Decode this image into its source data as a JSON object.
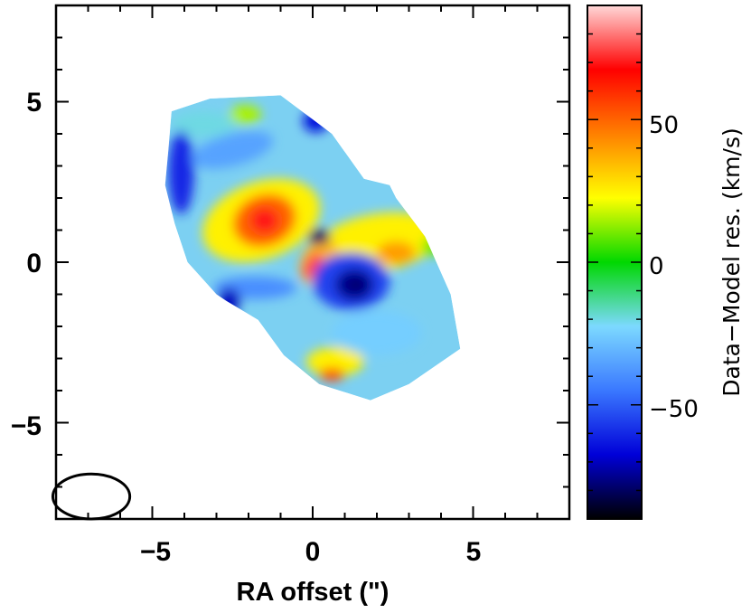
{
  "chart_data": {
    "type": "heatmap",
    "xlabel": "RA offset (\")",
    "ylabel": "",
    "xlim": [
      -8,
      8
    ],
    "ylim": [
      -8,
      8
    ],
    "x_ticks": [
      -5,
      0,
      5
    ],
    "y_ticks": [
      5,
      0,
      -5
    ],
    "x_tick_labels": [
      "−5",
      "0",
      "5"
    ],
    "y_tick_labels": [
      "5",
      "0",
      "−5"
    ],
    "colorbar": {
      "label": "Data−Model res. (km/s)",
      "range": [
        -90,
        90
      ],
      "ticks": [
        50,
        0,
        -50
      ],
      "tick_labels": [
        "50",
        "0",
        "−50"
      ],
      "colormap": [
        "#000000",
        "#0000d8",
        "#3a78ff",
        "#7cd9ff",
        "#00d800",
        "#ffff00",
        "#ff8000",
        "#ff0000",
        "#ffd8d8"
      ]
    },
    "beam": {
      "center": [
        -6.9,
        -7.3
      ],
      "major": 1.2,
      "minor": 0.7
    },
    "map_background": "#7cd0f2",
    "outline": [
      [
        -4.4,
        4.7
      ],
      [
        -3.2,
        5.1
      ],
      [
        -1.0,
        5.2
      ],
      [
        0.6,
        4.0
      ],
      [
        1.6,
        2.6
      ],
      [
        2.4,
        2.4
      ],
      [
        2.6,
        2.0
      ],
      [
        3.5,
        0.8
      ],
      [
        4.3,
        -1.0
      ],
      [
        4.6,
        -2.7
      ],
      [
        3.0,
        -3.8
      ],
      [
        1.8,
        -4.3
      ],
      [
        0.2,
        -3.8
      ],
      [
        -0.9,
        -2.9
      ],
      [
        -1.7,
        -1.8
      ],
      [
        -2.7,
        -1.2
      ],
      [
        -3.0,
        -1.0
      ],
      [
        -3.9,
        0.0
      ],
      [
        -4.3,
        1.2
      ],
      [
        -4.6,
        2.4
      ],
      [
        -4.5,
        3.5
      ]
    ],
    "features": [
      {
        "x": -1.6,
        "y": 1.3,
        "rx": 1.9,
        "ry": 1.2,
        "rot": -20,
        "value": 25
      },
      {
        "x": -1.5,
        "y": 1.3,
        "rx": 1.0,
        "ry": 0.8,
        "rot": -20,
        "value": 50
      },
      {
        "x": -1.5,
        "y": 1.3,
        "rx": 0.45,
        "ry": 0.4,
        "rot": 0,
        "value": 70
      },
      {
        "x": 2.0,
        "y": 0.6,
        "rx": 2.0,
        "ry": 0.9,
        "rot": -10,
        "value": 25
      },
      {
        "x": 2.6,
        "y": 0.3,
        "rx": 0.6,
        "ry": 0.35,
        "rot": 0,
        "value": 40
      },
      {
        "x": 0.2,
        "y": 0.0,
        "rx": 0.55,
        "ry": 0.75,
        "rot": 30,
        "value": 35
      },
      {
        "x": 0.0,
        "y": -0.1,
        "rx": 0.25,
        "ry": 0.45,
        "rot": 30,
        "value": 75
      },
      {
        "x": 1.2,
        "y": -0.6,
        "rx": 1.2,
        "ry": 0.9,
        "rot": 0,
        "value": -55
      },
      {
        "x": 1.3,
        "y": -0.7,
        "rx": 0.6,
        "ry": 0.5,
        "rot": 0,
        "value": -75
      },
      {
        "x": 1.35,
        "y": -0.7,
        "rx": 0.2,
        "ry": 0.12,
        "rot": 0,
        "value": -85
      },
      {
        "x": 0.2,
        "y": 0.8,
        "rx": 0.35,
        "ry": 0.25,
        "rot": 0,
        "value": -80
      },
      {
        "x": -1.8,
        "y": -0.8,
        "rx": 1.3,
        "ry": 0.35,
        "rot": 0,
        "value": -40
      },
      {
        "x": 0.7,
        "y": -3.1,
        "rx": 0.9,
        "ry": 0.45,
        "rot": 0,
        "value": 25
      },
      {
        "x": 0.6,
        "y": -3.5,
        "rx": 0.4,
        "ry": 0.2,
        "rot": 0,
        "value": 55
      },
      {
        "x": -3.4,
        "y": 4.3,
        "rx": 1.0,
        "ry": 0.4,
        "rot": 0,
        "value": -20
      },
      {
        "x": -2.1,
        "y": 4.6,
        "rx": 0.5,
        "ry": 0.3,
        "rot": 0,
        "value": 15
      },
      {
        "x": 0.1,
        "y": 4.4,
        "rx": 0.4,
        "ry": 0.35,
        "rot": 0,
        "value": -65
      },
      {
        "x": -4.1,
        "y": 2.8,
        "rx": 0.4,
        "ry": 1.3,
        "rot": 0,
        "value": -60
      },
      {
        "x": -2.6,
        "y": -1.2,
        "rx": 0.35,
        "ry": 0.4,
        "rot": 0,
        "value": -70
      },
      {
        "x": 3.8,
        "y": 0.5,
        "rx": 0.4,
        "ry": 0.3,
        "rot": 0,
        "value": 10
      },
      {
        "x": 2.0,
        "y": -2.2,
        "rx": 1.4,
        "ry": 0.7,
        "rot": 0,
        "value": -25
      },
      {
        "x": -2.5,
        "y": 3.5,
        "rx": 1.3,
        "ry": 0.5,
        "rot": -15,
        "value": -35
      }
    ]
  }
}
